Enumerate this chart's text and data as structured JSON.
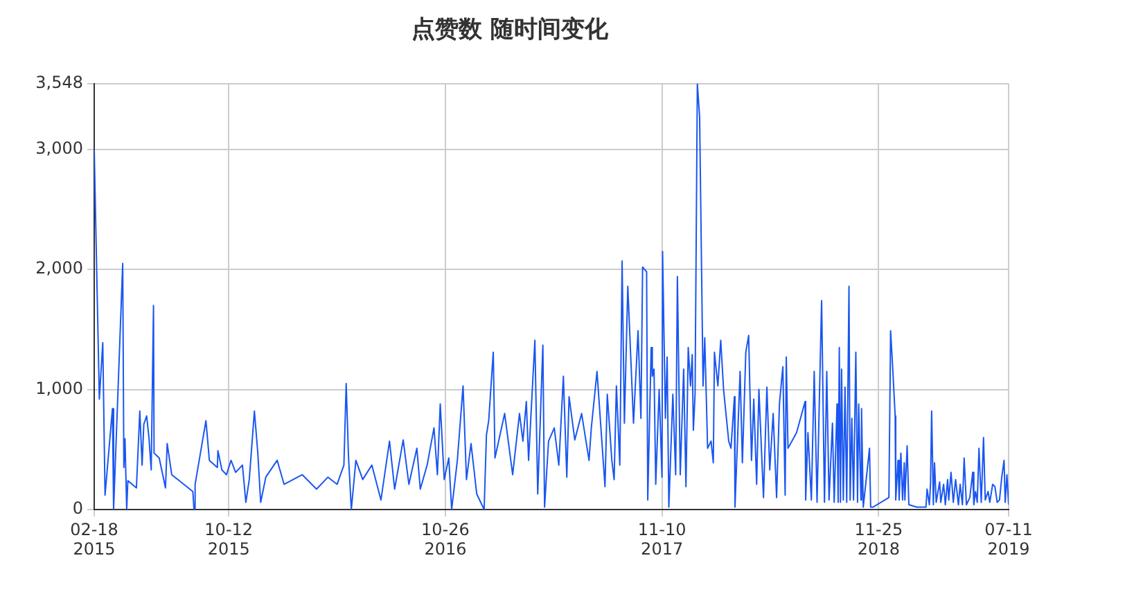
{
  "chart_data": {
    "type": "line",
    "title": "点赞数 随时间变化",
    "color": "#1a56f0",
    "grid": true,
    "xlim": [
      "2015-02-18",
      "2019-07-11"
    ],
    "xticks": [
      {
        "value": "2015-02-18",
        "label": "02-18\n2015"
      },
      {
        "value": "2015-10-12",
        "label": "10-12\n2015"
      },
      {
        "value": "2016-10-26",
        "label": "10-26\n2016"
      },
      {
        "value": "2017-11-10",
        "label": "11-10\n2017"
      },
      {
        "value": "2018-11-25",
        "label": "11-25\n2018"
      },
      {
        "value": "2019-07-11",
        "label": "07-11\n2019"
      }
    ],
    "ylim": [
      0,
      3548
    ],
    "yticks": [
      0,
      {
        "value": 1000,
        "label": "1,000"
      },
      {
        "value": 2000,
        "label": "2,000"
      },
      {
        "value": 3000,
        "label": "3,000"
      },
      {
        "value": 3548,
        "label": "3,548"
      }
    ],
    "x": [
      "2015-02-18",
      "2015-02-27",
      "2015-03-05",
      "2015-03-09",
      "2015-03-22",
      "2015-03-24",
      "2015-04-09",
      "2015-04-11",
      "2015-04-13",
      "2015-04-16",
      "2015-04-18",
      "2015-05-03",
      "2015-05-09",
      "2015-05-13",
      "2015-05-16",
      "2015-05-21",
      "2015-05-25",
      "2015-05-29",
      "2015-06-02",
      "2015-06-03",
      "2015-06-12",
      "2015-06-23",
      "2015-06-26",
      "2015-07-04",
      "2015-08-10",
      "2015-08-12",
      "2015-08-14",
      "2015-09-02",
      "2015-09-08",
      "2015-09-22",
      "2015-09-23",
      "2015-09-30",
      "2015-10-08",
      "2015-10-16",
      "2015-10-24",
      "2015-11-05",
      "2015-11-11",
      "2015-11-17",
      "2015-11-26",
      "2015-12-02",
      "2015-12-07",
      "2015-12-16",
      "2016-01-05",
      "2016-01-17",
      "2016-02-18",
      "2016-03-14",
      "2016-04-03",
      "2016-04-19",
      "2016-05-01",
      "2016-05-05",
      "2016-05-09",
      "2016-05-14",
      "2016-05-22",
      "2016-06-03",
      "2016-06-19",
      "2016-07-05",
      "2016-07-20",
      "2016-07-29",
      "2016-08-13",
      "2016-08-23",
      "2016-09-06",
      "2016-09-12",
      "2016-09-24",
      "2016-10-06",
      "2016-10-12",
      "2016-10-17",
      "2016-10-24",
      "2016-11-01",
      "2016-11-06",
      "2016-11-16",
      "2016-11-26",
      "2016-12-02",
      "2016-12-10",
      "2016-12-20",
      "2017-01-02",
      "2017-01-06",
      "2017-01-10",
      "2017-01-18",
      "2017-01-21",
      "2017-02-07",
      "2017-02-21",
      "2017-03-05",
      "2017-03-11",
      "2017-03-17",
      "2017-03-21",
      "2017-04-01",
      "2017-04-06",
      "2017-04-15",
      "2017-04-18",
      "2017-04-25",
      "2017-05-05",
      "2017-05-13",
      "2017-05-21",
      "2017-05-27",
      "2017-05-31",
      "2017-06-10",
      "2017-06-22",
      "2017-07-05",
      "2017-07-09",
      "2017-07-19",
      "2017-08-02",
      "2017-08-06",
      "2017-08-14",
      "2017-08-18",
      "2017-08-22",
      "2017-08-28",
      "2017-09-01",
      "2017-09-05",
      "2017-09-11",
      "2017-09-21",
      "2017-09-29",
      "2017-10-04",
      "2017-10-07",
      "2017-10-14",
      "2017-10-16",
      "2017-10-22",
      "2017-10-24",
      "2017-10-27",
      "2017-10-30",
      "2017-11-05",
      "2017-11-10",
      "2017-11-11",
      "2017-11-16",
      "2017-11-19",
      "2017-11-22",
      "2017-11-29",
      "2017-12-04",
      "2017-12-07",
      "2017-12-12",
      "2017-12-18",
      "2017-12-22",
      "2017-12-26",
      "2017-12-30",
      "2018-01-02",
      "2018-01-04",
      "2018-01-07",
      "2018-01-11",
      "2018-01-15",
      "2018-01-21",
      "2018-01-24",
      "2018-01-29",
      "2018-02-04",
      "2018-02-08",
      "2018-02-10",
      "2018-02-16",
      "2018-02-21",
      "2018-02-26",
      "2018-03-07",
      "2018-03-11",
      "2018-03-17",
      "2018-03-18",
      "2018-03-27",
      "2018-03-31",
      "2018-04-06",
      "2018-04-11",
      "2018-04-16",
      "2018-04-20",
      "2018-04-25",
      "2018-04-29",
      "2018-05-07",
      "2018-05-13",
      "2018-05-18",
      "2018-05-24",
      "2018-05-30",
      "2018-06-04",
      "2018-06-10",
      "2018-06-14",
      "2018-06-16",
      "2018-06-19",
      "2018-07-04",
      "2018-07-19",
      "2018-07-20",
      "2018-07-24",
      "2018-07-30",
      "2018-08-04",
      "2018-08-09",
      "2018-08-15",
      "2018-08-17",
      "2018-08-22",
      "2018-08-26",
      "2018-08-30",
      "2018-09-05",
      "2018-09-08",
      "2018-09-13",
      "2018-09-15",
      "2018-09-17",
      "2018-09-19",
      "2018-09-21",
      "2018-09-24",
      "2018-09-27",
      "2018-09-30",
      "2018-10-04",
      "2018-10-06",
      "2018-10-09",
      "2018-10-12",
      "2018-10-16",
      "2018-10-19",
      "2018-10-21",
      "2018-10-25",
      "2018-10-26",
      "2018-10-29",
      "2018-11-09",
      "2018-11-11",
      "2018-11-15",
      "2018-12-13",
      "2018-12-16",
      "2018-12-20",
      "2018-12-24",
      "2018-12-25",
      "2018-12-29",
      "2018-12-31",
      "2019-01-03",
      "2019-01-06",
      "2019-01-09",
      "2019-01-10",
      "2019-01-14",
      "2019-01-17",
      "2019-01-31",
      "2019-02-16",
      "2019-02-18",
      "2019-02-22",
      "2019-02-24",
      "2019-02-26",
      "2019-03-01",
      "2019-03-03",
      "2019-03-06",
      "2019-03-12",
      "2019-03-14",
      "2019-03-19",
      "2019-03-22",
      "2019-03-26",
      "2019-03-28",
      "2019-04-01",
      "2019-04-05",
      "2019-04-09",
      "2019-04-14",
      "2019-04-17",
      "2019-04-21",
      "2019-04-24",
      "2019-04-28",
      "2019-05-04",
      "2019-05-09",
      "2019-05-11",
      "2019-05-14",
      "2019-05-17",
      "2019-05-20",
      "2019-05-24",
      "2019-05-28",
      "2019-05-31",
      "2019-06-05",
      "2019-06-08",
      "2019-06-13",
      "2019-06-17",
      "2019-06-21",
      "2019-06-25",
      "2019-06-29",
      "2019-07-03",
      "2019-07-05",
      "2019-07-08",
      "2019-07-11"
    ],
    "values": [
      3000,
      920,
      1390,
      120,
      840,
      0,
      2050,
      350,
      590,
      0,
      240,
      180,
      820,
      370,
      710,
      780,
      600,
      330,
      1700,
      470,
      430,
      180,
      550,
      290,
      150,
      0,
      210,
      740,
      410,
      350,
      490,
      330,
      290,
      410,
      310,
      370,
      60,
      250,
      820,
      470,
      60,
      270,
      410,
      210,
      290,
      170,
      270,
      210,
      370,
      1050,
      450,
      0,
      410,
      250,
      370,
      80,
      570,
      170,
      580,
      210,
      510,
      170,
      370,
      680,
      290,
      880,
      250,
      430,
      0,
      410,
      1030,
      250,
      550,
      130,
      0,
      620,
      740,
      1310,
      430,
      800,
      290,
      800,
      570,
      900,
      410,
      1410,
      130,
      1370,
      20,
      570,
      680,
      370,
      1110,
      270,
      940,
      580,
      800,
      410,
      680,
      1150,
      190,
      960,
      410,
      250,
      1030,
      370,
      2070,
      720,
      1860,
      720,
      1490,
      760,
      2020,
      1980,
      80,
      1350,
      1110,
      1170,
      210,
      1000,
      270,
      2150,
      760,
      1270,
      20,
      960,
      290,
      1940,
      290,
      1170,
      190,
      1350,
      1030,
      1290,
      660,
      960,
      3548,
      3270,
      1030,
      1430,
      510,
      570,
      390,
      1310,
      1030,
      1410,
      1000,
      570,
      510,
      940,
      20,
      1150,
      390,
      1310,
      1450,
      410,
      920,
      210,
      1000,
      100,
      1020,
      330,
      800,
      100,
      880,
      1190,
      120,
      1270,
      510,
      640,
      900,
      80,
      640,
      80,
      1150,
      60,
      1330,
      1740,
      60,
      1150,
      80,
      720,
      60,
      880,
      60,
      1350,
      60,
      1170,
      80,
      1020,
      60,
      1860,
      80,
      760,
      80,
      1310,
      60,
      880,
      80,
      840,
      20,
      510,
      20,
      20,
      100,
      1490,
      1150,
      780,
      80,
      410,
      80,
      470,
      80,
      390,
      80,
      530,
      40,
      20,
      20,
      170,
      40,
      210,
      820,
      40,
      390,
      60,
      230,
      60,
      210,
      40,
      250,
      80,
      310,
      60,
      250,
      40,
      210,
      40,
      430,
      40,
      100,
      310,
      40,
      150,
      60,
      510,
      60,
      600,
      80,
      150,
      60,
      210,
      190,
      60,
      80,
      270,
      410,
      60,
      290,
      40
    ]
  }
}
